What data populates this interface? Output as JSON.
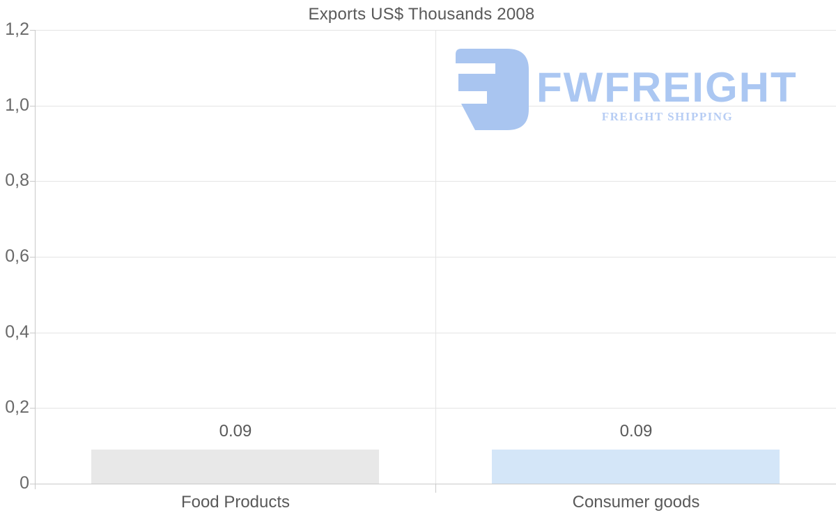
{
  "chart_data": {
    "type": "bar",
    "title": "Exports US$ Thousands 2008",
    "categories": [
      "Food Products",
      "Consumer goods"
    ],
    "values": [
      0.09,
      0.09
    ],
    "value_labels": [
      "0.09",
      "0.09"
    ],
    "bar_colors": [
      "#e8e8e8",
      "#d4e6f8"
    ],
    "ylim": [
      0,
      1.2
    ],
    "y_ticks": [
      {
        "label": "1,2",
        "value": 1.2
      },
      {
        "label": "1,0",
        "value": 1.0
      },
      {
        "label": "0,8",
        "value": 0.8
      },
      {
        "label": "0,6",
        "value": 0.6
      },
      {
        "label": "0,4",
        "value": 0.4
      },
      {
        "label": "0,2",
        "value": 0.2
      },
      {
        "label": "0",
        "value": 0
      }
    ],
    "grid": true,
    "legend_position": "none",
    "xlabel": "",
    "ylabel": ""
  },
  "logo": {
    "wordmark": "FWFREIGHT",
    "tagline": "FREIGHT SHIPPING",
    "mark_icon": "fwfreight-block-3-icon",
    "mark_color": "#a9c5f0",
    "wordmark_color": "#abc7f2",
    "tagline_color": "#b7cdf4"
  },
  "colors": {
    "background": "#ffffff",
    "title_text": "#595959",
    "axis_text": "#696969",
    "gridline": "#e4e4e4",
    "axis_line": "#c9c9c9",
    "bar_gray": "#e8e8e8",
    "bar_blue": "#d4e6f8"
  }
}
